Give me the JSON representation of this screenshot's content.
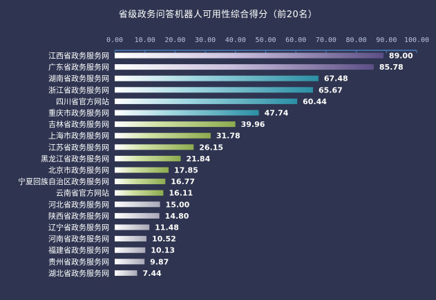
{
  "chart_data": {
    "type": "bar",
    "orientation": "horizontal",
    "title": "省级政务问答机器人可用性综合得分（前20名）",
    "xlim": [
      0,
      100
    ],
    "x_ticks": [
      "0.00",
      "10.00",
      "20.00",
      "30.00",
      "40.00",
      "50.00",
      "60.00",
      "70.00",
      "80.00",
      "90.00",
      "100.00"
    ],
    "axis_position": "top",
    "grid": false,
    "categories": [
      "江西省政务服务网",
      "广东省政务服务网",
      "湖南省政务服务网",
      "浙江省政务服务网",
      "四川省官方网站",
      "重庆市政务服务网",
      "吉林省政务服务网",
      "上海市政务服务网",
      "江苏省政务服务网",
      "黑龙江省政务服务网",
      "北京市政务服务网",
      "宁夏回族自治区政务服务网",
      "云南省官方网站",
      "河北省政务服务网",
      "陕西省政务服务网",
      "辽宁省政务服务网",
      "河南省政务服务网",
      "福建省政务服务网",
      "贵州省政务服务网",
      "湖北省政务服务网"
    ],
    "values": [
      89.0,
      85.78,
      67.48,
      65.67,
      60.44,
      47.74,
      39.96,
      31.78,
      26.15,
      21.84,
      17.85,
      16.77,
      16.11,
      15.0,
      14.8,
      11.48,
      10.52,
      10.13,
      9.87,
      7.44
    ],
    "value_labels": [
      "89.00",
      "85.78",
      "67.48",
      "65.67",
      "60.44",
      "47.74",
      "39.96",
      "31.78",
      "26.15",
      "21.84",
      "17.85",
      "16.77",
      "16.11",
      "15.00",
      "14.80",
      "11.48",
      "10.52",
      "10.13",
      "9.87",
      "7.44"
    ],
    "colors": {
      "background": "#2f3550",
      "axis": "#4a7fc0",
      "bar_purple": "#5c4f85",
      "bar_teal": "#2b8fa4",
      "bar_olive": "#8cab4e",
      "bar_gray": "#a8a8b8"
    }
  }
}
